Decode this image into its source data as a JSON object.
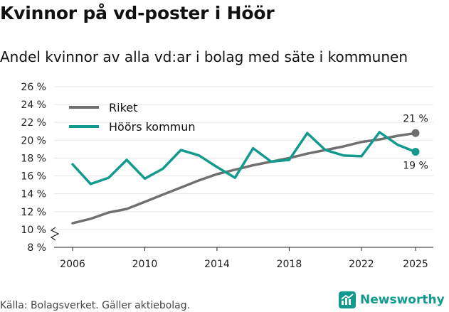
{
  "header": {
    "title": "Kvinnor på vd-poster i Höör",
    "subtitle": "Andel kvinnor av alla vd:ar i bolag med säte i kommunen"
  },
  "footer": {
    "source": "Källa: Bolagsverket. Gäller aktiebolag.",
    "brand": "Newsworthy"
  },
  "colors": {
    "riket": "#707070",
    "hoor": "#139a8e",
    "grid": "#e6e6e6"
  },
  "chart_data": {
    "type": "line",
    "title": "Kvinnor på vd-poster i Höör",
    "subtitle": "Andel kvinnor av alla vd:ar i bolag med säte i kommunen",
    "xlabel": "",
    "ylabel": "",
    "ylim": [
      8,
      26
    ],
    "xlim": [
      2006,
      2025
    ],
    "yticks": [
      8,
      10,
      12,
      14,
      16,
      18,
      20,
      22,
      24,
      26
    ],
    "ytick_labels": [
      "8 %",
      "10 %",
      "12 %",
      "14 %",
      "16 %",
      "18 %",
      "20 %",
      "22 %",
      "24 %",
      "26 %"
    ],
    "xticks": [
      2006,
      2010,
      2014,
      2018,
      2022,
      2025
    ],
    "xtick_labels": [
      "2006",
      "2010",
      "2014",
      "2018",
      "2022",
      "2025"
    ],
    "broken_axis": true,
    "legend_position": "top-left",
    "x": [
      2006,
      2007,
      2008,
      2009,
      2010,
      2011,
      2012,
      2013,
      2014,
      2015,
      2016,
      2017,
      2018,
      2019,
      2020,
      2021,
      2022,
      2023,
      2024,
      2025
    ],
    "series": [
      {
        "name": "Riket",
        "color": "#707070",
        "values": [
          10.7,
          11.2,
          11.9,
          12.3,
          13.1,
          13.9,
          14.7,
          15.5,
          16.2,
          16.7,
          17.2,
          17.6,
          18.0,
          18.5,
          18.9,
          19.3,
          19.8,
          20.1,
          20.5,
          20.8
        ],
        "end_label": "21 %"
      },
      {
        "name": "Höörs kommun",
        "color": "#139a8e",
        "values": [
          17.3,
          15.1,
          15.8,
          17.8,
          15.7,
          16.8,
          18.9,
          18.3,
          17.0,
          15.8,
          19.1,
          17.6,
          17.8,
          20.8,
          18.9,
          18.3,
          18.2,
          20.9,
          19.5,
          18.7
        ],
        "end_label": "19 %"
      }
    ]
  }
}
